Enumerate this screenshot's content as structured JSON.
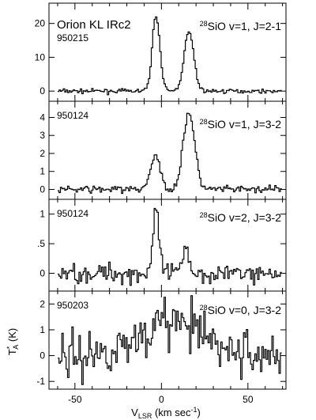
{
  "chart_data": {
    "type": "line",
    "xlabel_main": "V",
    "xlabel_sub": "LSR",
    "xlabel_unit_pre": " (km sec",
    "xlabel_unit_sup": "-1",
    "xlabel_unit_post": ")",
    "ylabel_main": "T",
    "ylabel_sup": "*",
    "ylabel_sub": "A",
    "ylabel_unit": " (K)",
    "xlim": [
      -65,
      72
    ],
    "xticks": [
      {
        "value": -50,
        "label": "-50"
      },
      {
        "value": 0,
        "label": "0"
      },
      {
        "value": 50,
        "label": "50"
      }
    ],
    "panels": [
      {
        "source": "Orion KL IRc2",
        "date": "950215",
        "line_iso": "28",
        "line_label": "SiO v=1, J=2-1",
        "ylim": [
          -3,
          26
        ],
        "yticks": [
          {
            "value": 0,
            "label": "0"
          },
          {
            "value": 10,
            "label": "10"
          },
          {
            "value": 20,
            "label": "20"
          }
        ],
        "noise": 0.3,
        "baseline": 0,
        "peaks": [
          {
            "center": -3.5,
            "amp": 22.5,
            "width": 2.2
          },
          {
            "center": 15.5,
            "amp": 17.5,
            "width": 2.8
          }
        ]
      },
      {
        "source": "",
        "date": "950124",
        "line_iso": "28",
        "line_label": "SiO v=1, J=3-2",
        "ylim": [
          -0.55,
          4.9
        ],
        "yticks": [
          {
            "value": 0,
            "label": "0"
          },
          {
            "value": 1,
            "label": "1"
          },
          {
            "value": 2,
            "label": "2"
          },
          {
            "value": 3,
            "label": "3"
          },
          {
            "value": 4,
            "label": "4"
          }
        ],
        "noise": 0.1,
        "baseline": 0,
        "peaks": [
          {
            "center": -4,
            "amp": 1.85,
            "width": 2.8
          },
          {
            "center": 15.5,
            "amp": 4.3,
            "width": 3.3
          }
        ]
      },
      {
        "source": "",
        "date": "950124",
        "line_iso": "28",
        "line_label": "SiO v=2, J=3-2",
        "ylim": [
          -0.3,
          1.25
        ],
        "yticks": [
          {
            "value": 0,
            "label": "0"
          },
          {
            "value": 0.5,
            "label": ".5"
          },
          {
            "value": 1,
            "label": "1"
          }
        ],
        "noise": 0.08,
        "baseline": 0,
        "peaks": [
          {
            "center": -3.5,
            "amp": 1.0,
            "width": 1.8
          },
          {
            "center": 14,
            "amp": 0.5,
            "width": 1.6
          }
        ]
      },
      {
        "source": "",
        "date": "950203",
        "line_iso": "28",
        "line_label": "SiO v=0, J=3-2",
        "ylim": [
          -1.3,
          2.5
        ],
        "yticks": [
          {
            "value": -1,
            "label": "-1"
          },
          {
            "value": 0,
            "label": "0"
          },
          {
            "value": 1,
            "label": "1"
          },
          {
            "value": 2,
            "label": "2"
          }
        ],
        "noise": 0.45,
        "baseline": 0,
        "peaks": [
          {
            "center": 5,
            "amp": 1.3,
            "width": 18
          }
        ]
      }
    ]
  }
}
